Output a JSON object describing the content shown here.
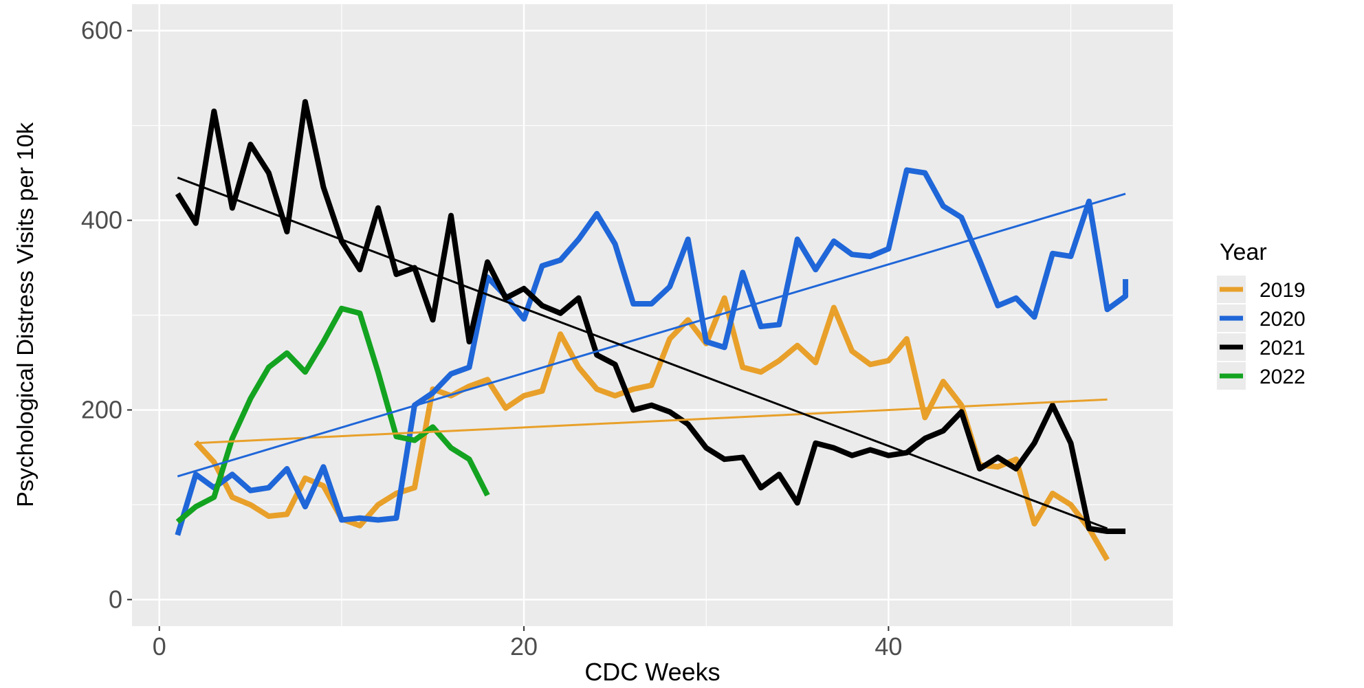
{
  "chart_data": {
    "type": "line",
    "x_label": "CDC Weeks",
    "y_label": "Psychological Distress Visits per 10k",
    "legend_title": "Year",
    "legend_position": "right",
    "grid": true,
    "xlim": [
      -1.5,
      55.6
    ],
    "ylim": [
      -28,
      628
    ],
    "xticks": [
      0,
      20,
      40
    ],
    "yticks": [
      0,
      200,
      400,
      600
    ],
    "x_minor_grid": [
      10,
      30,
      50
    ],
    "y_minor_grid": [
      100,
      300,
      500
    ],
    "series": [
      {
        "name": "2019",
        "color": "#e8a02a",
        "x": [
          2,
          3,
          4,
          5,
          6,
          7,
          8,
          9,
          10,
          11,
          12,
          13,
          14,
          15,
          16,
          17,
          18,
          19,
          20,
          21,
          22,
          23,
          24,
          25,
          26,
          27,
          28,
          29,
          30,
          31,
          32,
          33,
          34,
          35,
          36,
          37,
          38,
          39,
          40,
          41,
          42,
          43,
          44,
          45,
          46,
          47,
          48,
          49,
          50,
          51,
          52
        ],
        "values": [
          166,
          145,
          108,
          100,
          88,
          90,
          128,
          120,
          85,
          78,
          100,
          112,
          118,
          222,
          215,
          225,
          232,
          202,
          215,
          220,
          280,
          245,
          222,
          215,
          222,
          226,
          275,
          295,
          270,
          318,
          245,
          240,
          252,
          268,
          250,
          308,
          262,
          248,
          252,
          275,
          192,
          230,
          205,
          142,
          140,
          148,
          80,
          112,
          100,
          75,
          42
        ],
        "trend": {
          "x": [
            2,
            52
          ],
          "values": [
            165,
            211
          ]
        }
      },
      {
        "name": "2020",
        "color": "#1f66d8",
        "x": [
          1,
          2,
          3,
          4,
          5,
          6,
          7,
          8,
          9,
          10,
          11,
          12,
          13,
          14,
          15,
          16,
          17,
          18,
          19,
          20,
          21,
          22,
          23,
          24,
          25,
          26,
          27,
          28,
          29,
          30,
          31,
          32,
          33,
          34,
          35,
          36,
          37,
          38,
          39,
          40,
          41,
          42,
          43,
          44,
          45,
          46,
          47,
          48,
          49,
          50,
          51,
          52,
          53,
          53
        ],
        "values": [
          68,
          132,
          118,
          132,
          115,
          118,
          138,
          98,
          140,
          84,
          86,
          84,
          86,
          205,
          218,
          238,
          245,
          340,
          320,
          296,
          352,
          358,
          380,
          407,
          375,
          312,
          312,
          330,
          380,
          272,
          266,
          345,
          288,
          290,
          380,
          348,
          378,
          364,
          362,
          370,
          453,
          450,
          415,
          403,
          358,
          310,
          318,
          298,
          365,
          362,
          420,
          306,
          320,
          338
        ],
        "trend": {
          "x": [
            1,
            53
          ],
          "values": [
            130,
            428
          ]
        }
      },
      {
        "name": "2021",
        "color": "#000000",
        "x": [
          1,
          2,
          3,
          4,
          5,
          6,
          7,
          8,
          9,
          10,
          11,
          12,
          13,
          14,
          15,
          16,
          17,
          18,
          19,
          20,
          21,
          22,
          23,
          24,
          25,
          26,
          27,
          28,
          29,
          30,
          31,
          32,
          33,
          34,
          35,
          36,
          37,
          38,
          39,
          40,
          41,
          42,
          43,
          44,
          45,
          46,
          47,
          48,
          49,
          50,
          51,
          52,
          53
        ],
        "values": [
          428,
          397,
          515,
          413,
          480,
          450,
          388,
          525,
          435,
          378,
          348,
          413,
          343,
          350,
          295,
          405,
          272,
          356,
          318,
          328,
          310,
          302,
          318,
          258,
          248,
          200,
          205,
          198,
          185,
          160,
          148,
          150,
          118,
          132,
          102,
          165,
          160,
          152,
          158,
          152,
          155,
          170,
          178,
          198,
          138,
          150,
          138,
          165,
          205,
          165,
          75,
          72,
          72
        ],
        "trend": {
          "x": [
            1,
            52
          ],
          "values": [
            445,
            75
          ]
        }
      },
      {
        "name": "2022",
        "color": "#13a320",
        "x": [
          1,
          2,
          3,
          4,
          5,
          6,
          7,
          8,
          9,
          10,
          11,
          12,
          13,
          14,
          15,
          16,
          17,
          18
        ],
        "values": [
          82,
          98,
          108,
          170,
          212,
          245,
          260,
          240,
          272,
          307,
          302,
          240,
          172,
          168,
          182,
          160,
          148,
          110
        ]
      }
    ]
  }
}
